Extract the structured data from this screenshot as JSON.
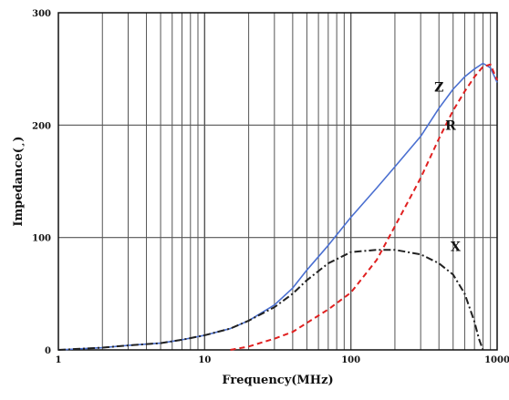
{
  "chart_data": {
    "type": "line",
    "title": "",
    "xlabel": "Frequency(MHz)",
    "ylabel": "Impedance(¸)",
    "xscale": "log",
    "xlim": [
      1,
      1000
    ],
    "ylim": [
      0,
      300
    ],
    "grid": true,
    "x_ticks": [
      "1",
      "10",
      "100",
      "1000"
    ],
    "y_ticks": [
      "0",
      "100",
      "200",
      "300"
    ],
    "series": [
      {
        "name": "Z",
        "color": "#4a6fd0",
        "dash": "solid",
        "x": [
          1,
          2,
          3,
          5,
          7,
          10,
          15,
          20,
          30,
          40,
          50,
          70,
          100,
          150,
          200,
          300,
          400,
          500,
          600,
          700,
          800,
          900,
          1000
        ],
        "y": [
          0,
          2,
          4,
          6,
          9,
          13,
          19,
          26,
          40,
          55,
          71,
          93,
          118,
          144,
          163,
          190,
          215,
          232,
          243,
          250,
          255,
          251,
          238
        ]
      },
      {
        "name": "R",
        "color": "#e02020",
        "dash": "dashed",
        "x": [
          15,
          20,
          30,
          40,
          50,
          70,
          100,
          150,
          200,
          300,
          400,
          500,
          600,
          700,
          800,
          900,
          1000
        ],
        "y": [
          0,
          3,
          10,
          16,
          24,
          36,
          51,
          80,
          110,
          153,
          188,
          213,
          230,
          243,
          252,
          254,
          240
        ]
      },
      {
        "name": "X",
        "color": "#222222",
        "dash": "dashdot",
        "x": [
          1,
          2,
          3,
          5,
          7,
          10,
          15,
          20,
          30,
          40,
          50,
          70,
          100,
          150,
          200,
          300,
          400,
          500,
          600,
          700,
          750,
          800
        ],
        "y": [
          0,
          2,
          4,
          6,
          9,
          13,
          19,
          26,
          38,
          50,
          62,
          77,
          87,
          89,
          89,
          85,
          77,
          67,
          50,
          25,
          10,
          0
        ]
      }
    ]
  }
}
